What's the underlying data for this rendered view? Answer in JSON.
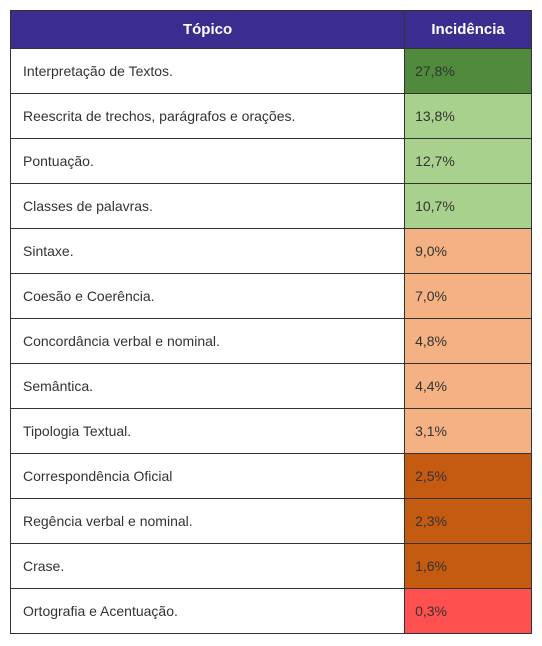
{
  "table": {
    "header_bg": "#3b2d8f",
    "columns": {
      "topic": "Tópico",
      "incidence": "Incidência"
    },
    "rows": [
      {
        "topic": "Interpretação de Textos.",
        "incidence": "27,8%",
        "bg": "#4f8a3d"
      },
      {
        "topic": "Reescrita de trechos, parágrafos e orações.",
        "incidence": "13,8%",
        "bg": "#a9d18e"
      },
      {
        "topic": "Pontuação.",
        "incidence": "12,7%",
        "bg": "#a9d18e"
      },
      {
        "topic": "Classes de palavras.",
        "incidence": "10,7%",
        "bg": "#a9d18e"
      },
      {
        "topic": "Sintaxe.",
        "incidence": "9,0%",
        "bg": "#f4b183"
      },
      {
        "topic": "Coesão e Coerência.",
        "incidence": "7,0%",
        "bg": "#f4b183"
      },
      {
        "topic": "Concordância verbal e nominal.",
        "incidence": "4,8%",
        "bg": "#f4b183"
      },
      {
        "topic": "Semântica.",
        "incidence": "4,4%",
        "bg": "#f4b183"
      },
      {
        "topic": "Tipologia Textual.",
        "incidence": "3,1%",
        "bg": "#f4b183"
      },
      {
        "topic": "Correspondência Oficial",
        "incidence": "2,5%",
        "bg": "#c55a11"
      },
      {
        "topic": "Regência verbal e nominal.",
        "incidence": "2,3%",
        "bg": "#c55a11"
      },
      {
        "topic": "Crase.",
        "incidence": "1,6%",
        "bg": "#c55a11"
      },
      {
        "topic": "Ortografia e Acentuação.",
        "incidence": "0,3%",
        "bg": "#ff5050"
      }
    ]
  }
}
